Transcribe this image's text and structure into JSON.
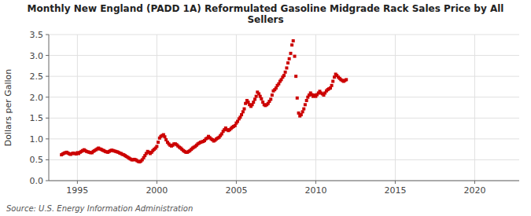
{
  "chart_data": {
    "type": "scatter",
    "title": "Monthly New England (PADD 1A) Reformulated Gasoline Midgrade Rack Sales Price by All\nSellers",
    "y_label": "Dollars per Gallon",
    "annotations": [
      "Source: U.S. Energy Information Administration"
    ],
    "color": "#CC0000",
    "marker": "square",
    "grid": true,
    "xlim": [
      1993.2,
      2022.8
    ],
    "ylim": [
      0.0,
      3.5
    ],
    "xticks": [
      1995,
      2000,
      2005,
      2010,
      2015,
      2020
    ],
    "yticks": [
      {
        "value": 0,
        "label": "0.0"
      },
      0.5,
      {
        "value": 1,
        "label": "1.0"
      },
      1.5,
      {
        "value": 2,
        "label": "2.0"
      },
      2.5,
      {
        "value": 3,
        "label": "3.0"
      },
      3.5
    ],
    "x": [
      1994.0,
      1994.08,
      1994.17,
      1994.25,
      1994.33,
      1994.42,
      1994.5,
      1994.58,
      1994.67,
      1994.75,
      1994.83,
      1994.92,
      1995.0,
      1995.08,
      1995.17,
      1995.25,
      1995.33,
      1995.42,
      1995.5,
      1995.58,
      1995.67,
      1995.75,
      1995.83,
      1995.92,
      1996.0,
      1996.08,
      1996.17,
      1996.25,
      1996.33,
      1996.42,
      1996.5,
      1996.58,
      1996.67,
      1996.75,
      1996.83,
      1996.92,
      1997.0,
      1997.08,
      1997.17,
      1997.25,
      1997.33,
      1997.42,
      1997.5,
      1997.58,
      1997.67,
      1997.75,
      1997.83,
      1997.92,
      1998.0,
      1998.08,
      1998.17,
      1998.25,
      1998.33,
      1998.42,
      1998.5,
      1998.58,
      1998.67,
      1998.75,
      1998.83,
      1998.92,
      1999.0,
      1999.08,
      1999.17,
      1999.25,
      1999.33,
      1999.42,
      1999.5,
      1999.58,
      1999.67,
      1999.75,
      1999.83,
      1999.92,
      2000.0,
      2000.08,
      2000.17,
      2000.25,
      2000.33,
      2000.42,
      2000.5,
      2000.58,
      2000.67,
      2000.75,
      2000.83,
      2000.92,
      2001.0,
      2001.08,
      2001.17,
      2001.25,
      2001.33,
      2001.42,
      2001.5,
      2001.58,
      2001.67,
      2001.75,
      2001.83,
      2001.92,
      2002.0,
      2002.08,
      2002.17,
      2002.25,
      2002.33,
      2002.42,
      2002.5,
      2002.58,
      2002.67,
      2002.75,
      2002.83,
      2002.92,
      2003.0,
      2003.08,
      2003.17,
      2003.25,
      2003.33,
      2003.42,
      2003.5,
      2003.58,
      2003.67,
      2003.75,
      2003.83,
      2003.92,
      2004.0,
      2004.08,
      2004.17,
      2004.25,
      2004.33,
      2004.42,
      2004.5,
      2004.58,
      2004.67,
      2004.75,
      2004.83,
      2004.92,
      2005.0,
      2005.08,
      2005.17,
      2005.25,
      2005.33,
      2005.42,
      2005.5,
      2005.58,
      2005.67,
      2005.75,
      2005.83,
      2005.92,
      2006.0,
      2006.08,
      2006.17,
      2006.25,
      2006.33,
      2006.42,
      2006.5,
      2006.58,
      2006.67,
      2006.75,
      2006.83,
      2006.92,
      2007.0,
      2007.08,
      2007.17,
      2007.25,
      2007.33,
      2007.42,
      2007.5,
      2007.58,
      2007.67,
      2007.75,
      2007.83,
      2007.92,
      2008.0,
      2008.08,
      2008.17,
      2008.25,
      2008.33,
      2008.42,
      2008.5,
      2008.58,
      2008.67,
      2008.75,
      2008.83,
      2008.92,
      2009.0,
      2009.08,
      2009.17,
      2009.25,
      2009.33,
      2009.42,
      2009.5,
      2009.58,
      2009.67,
      2009.75,
      2009.83,
      2009.92,
      2010.0,
      2010.08,
      2010.17,
      2010.25,
      2010.33,
      2010.42,
      2010.5,
      2010.58,
      2010.67,
      2010.75,
      2010.83,
      2010.92,
      2011.0,
      2011.08,
      2011.17,
      2011.25,
      2011.33,
      2011.42,
      2011.5,
      2011.58,
      2011.67,
      2011.75,
      2011.83,
      2011.92
    ],
    "values": [
      0.62,
      0.64,
      0.66,
      0.67,
      0.68,
      0.66,
      0.64,
      0.63,
      0.65,
      0.66,
      0.65,
      0.64,
      0.67,
      0.65,
      0.68,
      0.7,
      0.72,
      0.74,
      0.72,
      0.7,
      0.69,
      0.68,
      0.67,
      0.67,
      0.7,
      0.72,
      0.74,
      0.76,
      0.78,
      0.76,
      0.75,
      0.73,
      0.72,
      0.7,
      0.69,
      0.68,
      0.7,
      0.72,
      0.73,
      0.72,
      0.71,
      0.7,
      0.69,
      0.68,
      0.66,
      0.65,
      0.63,
      0.62,
      0.6,
      0.58,
      0.56,
      0.54,
      0.52,
      0.5,
      0.5,
      0.51,
      0.5,
      0.48,
      0.46,
      0.45,
      0.47,
      0.5,
      0.55,
      0.6,
      0.65,
      0.7,
      0.68,
      0.65,
      0.68,
      0.72,
      0.75,
      0.78,
      0.82,
      0.92,
      1.02,
      1.06,
      1.08,
      1.1,
      1.05,
      0.98,
      0.92,
      0.88,
      0.85,
      0.83,
      0.85,
      0.88,
      0.88,
      0.86,
      0.83,
      0.8,
      0.78,
      0.75,
      0.72,
      0.7,
      0.68,
      0.68,
      0.7,
      0.72,
      0.75,
      0.78,
      0.8,
      0.82,
      0.85,
      0.88,
      0.9,
      0.92,
      0.93,
      0.94,
      0.96,
      1.0,
      1.02,
      1.06,
      1.03,
      1.0,
      0.98,
      0.95,
      0.97,
      1.0,
      1.02,
      1.04,
      1.08,
      1.12,
      1.18,
      1.22,
      1.26,
      1.22,
      1.2,
      1.22,
      1.25,
      1.28,
      1.3,
      1.32,
      1.38,
      1.42,
      1.48,
      1.52,
      1.58,
      1.65,
      1.72,
      1.85,
      1.92,
      1.88,
      1.82,
      1.78,
      1.82,
      1.88,
      1.95,
      2.02,
      2.12,
      2.08,
      2.02,
      1.96,
      1.88,
      1.82,
      1.8,
      1.82,
      1.85,
      1.9,
      1.95,
      2.05,
      2.15,
      2.18,
      2.22,
      2.28,
      2.32,
      2.38,
      2.42,
      2.48,
      2.52,
      2.6,
      2.7,
      2.82,
      2.92,
      3.05,
      3.25,
      3.35,
      2.98,
      2.5,
      1.98,
      1.62,
      1.55,
      1.58,
      1.65,
      1.72,
      1.82,
      1.92,
      2.0,
      2.05,
      2.1,
      2.06,
      2.02,
      2.05,
      2.02,
      2.06,
      2.1,
      2.14,
      2.1,
      2.08,
      2.05,
      2.1,
      2.15,
      2.18,
      2.2,
      2.22,
      2.28,
      2.38,
      2.48,
      2.55,
      2.52,
      2.48,
      2.45,
      2.42,
      2.4,
      2.38,
      2.4,
      2.42
    ]
  }
}
